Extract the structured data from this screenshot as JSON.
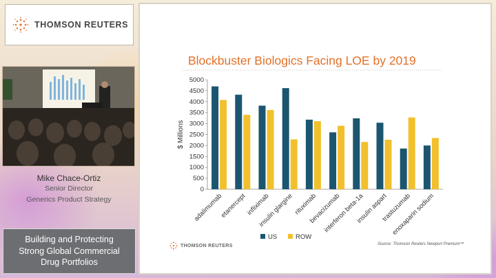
{
  "brand": {
    "name": "THOMSON REUTERS",
    "orange": "#e3712a",
    "grey": "#6d6e72"
  },
  "speaker": {
    "name": "Mike Chace-Ortiz",
    "title": "Senior Director",
    "department": "Generics Product Strategy"
  },
  "session": {
    "lines": [
      "Building and Protecting",
      "Strong Global Commercial",
      "Drug Portfolios"
    ]
  },
  "slide": {
    "title": "Blockbuster Biologics Facing LOE by 2019",
    "source": "Source:  Thomson Reuters Newport Premium™",
    "logo_text": "THOMSON REUTERS"
  },
  "chart_data": {
    "type": "bar",
    "title": "Blockbuster Biologics Facing LOE by 2019",
    "ylabel": "$ Millions",
    "xlabel": "",
    "ylim": [
      0,
      5000
    ],
    "yticks": [
      0,
      500,
      1000,
      1500,
      2000,
      2500,
      3000,
      3500,
      4000,
      4500,
      5000
    ],
    "categories": [
      "adalimumab",
      "etanercept",
      "infliximab",
      "insulin glargine",
      "rituximab",
      "bevacizumab",
      "interferon beta-1a",
      "insulin aspart",
      "trastuzumab",
      "enoxaparin sodium"
    ],
    "series": [
      {
        "name": "US",
        "color": "#1c5570",
        "values": [
          4700,
          4320,
          3820,
          4620,
          3180,
          2600,
          3240,
          3040,
          1860,
          2000
        ]
      },
      {
        "name": "ROW",
        "color": "#f2c02c",
        "values": [
          4080,
          3400,
          3620,
          2280,
          3110,
          2900,
          2160,
          2260,
          3280,
          2340
        ]
      }
    ],
    "legend": "bottom-center"
  }
}
